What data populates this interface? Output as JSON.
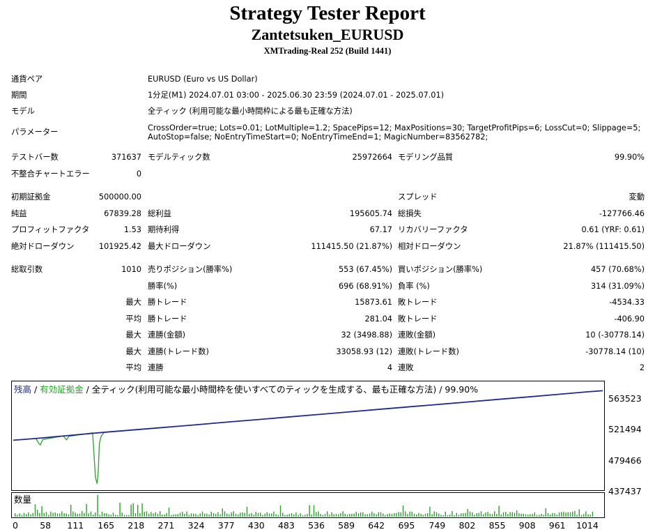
{
  "header": {
    "title": "Strategy Tester Report",
    "subtitle": "Zantetsuken_EURUSD",
    "build": "XMTrading-Real 252 (Build 1441)"
  },
  "settings": {
    "symbol_label": "通貨ペア",
    "symbol": "EURUSD (Euro vs US Dollar)",
    "period_label": "期間",
    "period": "1分足(M1) 2024.07.01 03:00 - 2025.06.30 23:59 (2024.07.01 - 2025.07.01)",
    "model_label": "モデル",
    "model": "全ティック (利用可能な最小時間枠による最も正確な方法)",
    "params_label": "パラメーター",
    "params_line1": "CrossOrder=true; Lots=0.01; LotMultiple=1.2; SpacePips=12; MaxPositions=30; TargetProfitPips=6; LossCut=0; Slippage=5;",
    "params_line2": "AutoStop=false; NoEntryTimeStart=0; NoEntryTimeEnd=1; MagicNumber=83562782;"
  },
  "quality": {
    "bars_label": "テストバー数",
    "bars": "371637",
    "ticks_label": "モデルティック数",
    "ticks": "25972664",
    "quality_label": "モデリング品質",
    "quality": "99.90%",
    "mismatch_label": "不整合チャートエラー",
    "mismatch": "0"
  },
  "results": {
    "deposit_label": "初期証拠金",
    "deposit": "500000.00",
    "spread_label": "スプレッド",
    "spread": "変動",
    "net_label": "純益",
    "net": "67839.28",
    "gross_profit_label": "総利益",
    "gross_profit": "195605.74",
    "gross_loss_label": "総損失",
    "gross_loss": "-127766.46",
    "pf_label": "プロフィットファクタ",
    "pf": "1.53",
    "expected_label": "期待利得",
    "expected": "67.17",
    "recovery_label": "リカバリーファクタ",
    "recovery": "0.61 (YRF: 0.61)",
    "abs_dd_label": "絶対ドローダウン",
    "abs_dd": "101925.42",
    "max_dd_label": "最大ドローダウン",
    "max_dd": "111415.50 (21.87%)",
    "rel_dd_label": "相対ドローダウン",
    "rel_dd": "21.87% (111415.50)"
  },
  "trades": {
    "total_label": "総取引数",
    "total": "1010",
    "short_label": "売りポジション(勝率%)",
    "short": "553 (67.45%)",
    "long_label": "買いポジション(勝率%)",
    "long": "457 (70.68%)",
    "win_rate_label": "勝率(%)",
    "win_rate": "696 (68.91%)",
    "loss_rate_label": "負率 (%)",
    "loss_rate": "314 (31.09%)",
    "max_prefix": "最大",
    "avg_prefix": "平均",
    "largest_win_label": "勝トレード",
    "largest_win": "15873.61",
    "largest_loss_label": "敗トレード",
    "largest_loss": "-4534.33",
    "avg_win_label": "勝トレード",
    "avg_win": "281.04",
    "avg_loss_label": "敗トレード",
    "avg_loss": "-406.90",
    "max_cons_wins_label": "連勝(金額)",
    "max_cons_wins": "32 (3498.88)",
    "max_cons_losses_label": "連敗(金額)",
    "max_cons_losses": "10 (-30778.14)",
    "max_cons_profit_label": "連勝(トレード数)",
    "max_cons_profit": "33058.93 (12)",
    "max_cons_loss_label": "連敗(トレード数)",
    "max_cons_loss": "-30778.14 (10)",
    "avg_cons_wins_label": "連勝",
    "avg_cons_wins": "4",
    "avg_cons_losses_label": "連敗",
    "avg_cons_losses": "2"
  },
  "chart": {
    "legend_balance": "残高",
    "legend_sep1": " / ",
    "legend_equity": "有効証拠金",
    "legend_sep2": " / ",
    "legend_model": "全ティック(利用可能な最小時間枠を使いすべてのティックを生成する、最も正確な方法) / 99.90%",
    "volume_label": "数量",
    "colors": {
      "balance": "#1f2a8a",
      "equity": "#2ca02c",
      "volume": "#2ca02c"
    }
  },
  "chart_data": {
    "type": "line",
    "y_ticks": [
      "563523",
      "521494",
      "479466",
      "437437"
    ],
    "x_ticks": [
      "0",
      "58",
      "111",
      "165",
      "218",
      "271",
      "324",
      "377",
      "430",
      "483",
      "536",
      "589",
      "642",
      "695",
      "749",
      "802",
      "855",
      "908",
      "961",
      "1014"
    ],
    "ylim": [
      437437,
      574000
    ],
    "xlim": [
      0,
      1040
    ],
    "series": [
      {
        "name": "残高",
        "x": [
          0,
          40,
          58,
          111,
          165,
          218,
          271,
          324,
          377,
          430,
          483,
          536,
          589,
          642,
          695,
          749,
          802,
          855,
          908,
          961,
          1014,
          1040
        ],
        "y": [
          500000,
          502200,
          503500,
          507000,
          510500,
          513600,
          516800,
          520000,
          523300,
          526500,
          529800,
          533000,
          536300,
          539600,
          542800,
          546100,
          549300,
          552600,
          555800,
          559100,
          562400,
          563800
        ]
      },
      {
        "name": "有効証拠金",
        "x": [
          40,
          45,
          48,
          52,
          88,
          94,
          98,
          140,
          145,
          148,
          150,
          152,
          155,
          160
        ],
        "y": [
          502000,
          496000,
          494000,
          501000,
          505500,
          500500,
          505000,
          509500,
          452000,
          444000,
          460000,
          496000,
          505000,
          510000
        ]
      }
    ],
    "grid": false,
    "legend": "top-left"
  }
}
